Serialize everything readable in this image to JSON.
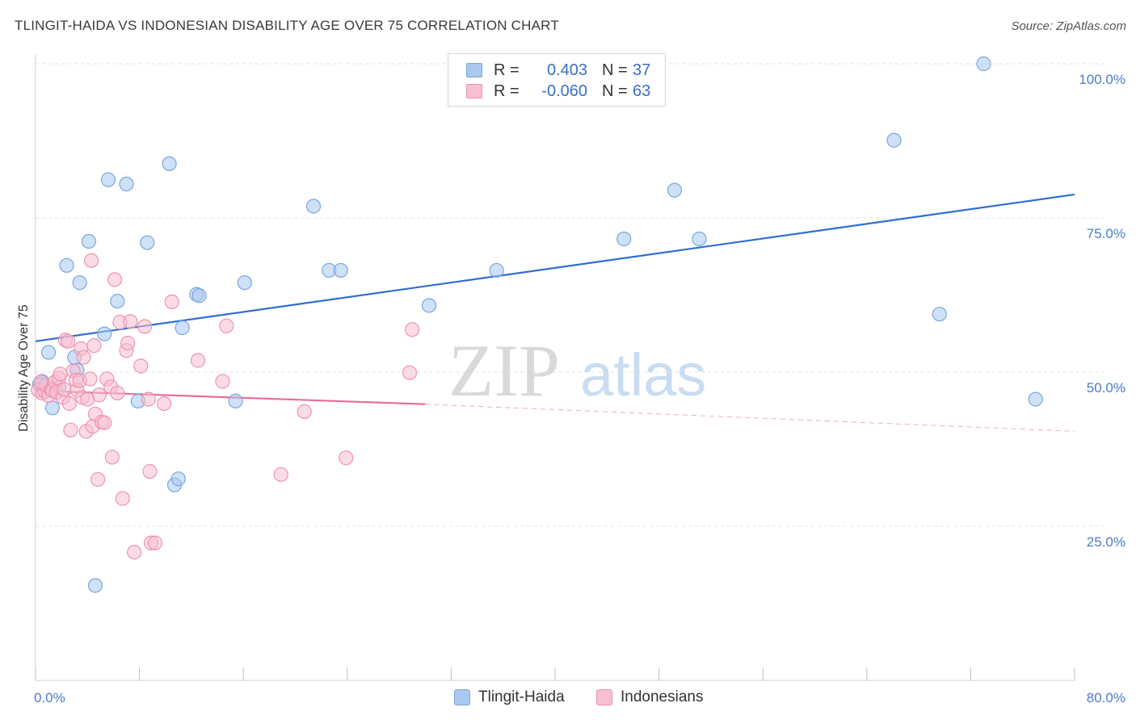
{
  "title": "TLINGIT-HAIDA VS INDONESIAN DISABILITY AGE OVER 75 CORRELATION CHART",
  "source": "Source: ZipAtlas.com",
  "watermark": {
    "zip": "ZIP",
    "atlas": "atlas"
  },
  "legend": {
    "rows": [
      {
        "r_label": "R =",
        "r_value": "0.403",
        "n_label": "N =",
        "n_value": "37",
        "color": "#a8c8ee",
        "border": "#7aa6df"
      },
      {
        "r_label": "R =",
        "r_value": "-0.060",
        "n_label": "N =",
        "n_value": "63",
        "color": "#f7bfd0",
        "border": "#ee93b1"
      }
    ]
  },
  "chart_data": {
    "type": "scatter",
    "title": "TLINGIT-HAIDA VS INDONESIAN DISABILITY AGE OVER 75 CORRELATION CHART",
    "xlabel": "",
    "ylabel": "Disability Age Over 75",
    "xlim": [
      0,
      80
    ],
    "ylim": [
      0,
      100
    ],
    "x_tick_labels": [
      "0.0%",
      "80.0%"
    ],
    "y_ticks": [
      25,
      50,
      75,
      100
    ],
    "y_tick_labels": [
      "25.0%",
      "50.0%",
      "75.0%",
      "100.0%"
    ],
    "grid": "horizontal dashed",
    "legend_position": "top-center",
    "series": [
      {
        "name": "Tlingit-Haida",
        "color": "#7aa6df",
        "fill": "#a8c8ee",
        "trend": {
          "x": [
            0,
            80
          ],
          "y": [
            55.0,
            78.8
          ],
          "color": "#2f6fcf"
        },
        "points": [
          [
            0.5,
            48.5
          ],
          [
            1.0,
            53.2
          ],
          [
            1.3,
            44.2
          ],
          [
            1.8,
            47.5
          ],
          [
            2.4,
            67.3
          ],
          [
            3.0,
            52.4
          ],
          [
            3.2,
            50.3
          ],
          [
            3.4,
            64.5
          ],
          [
            4.1,
            71.2
          ],
          [
            4.6,
            15.4
          ],
          [
            5.3,
            56.2
          ],
          [
            5.6,
            81.2
          ],
          [
            6.3,
            61.5
          ],
          [
            7.0,
            80.5
          ],
          [
            7.9,
            45.3
          ],
          [
            8.6,
            71.0
          ],
          [
            10.3,
            83.8
          ],
          [
            10.7,
            31.7
          ],
          [
            11.0,
            32.7
          ],
          [
            11.3,
            57.2
          ],
          [
            12.4,
            62.6
          ],
          [
            12.6,
            62.4
          ],
          [
            15.4,
            45.3
          ],
          [
            16.1,
            64.5
          ],
          [
            21.4,
            76.9
          ],
          [
            22.6,
            66.5
          ],
          [
            23.5,
            66.5
          ],
          [
            30.3,
            60.8
          ],
          [
            35.5,
            66.5
          ],
          [
            45.3,
            71.6
          ],
          [
            49.2,
            79.5
          ],
          [
            51.1,
            71.6
          ],
          [
            66.1,
            87.6
          ],
          [
            69.6,
            59.4
          ],
          [
            73.0,
            100.0
          ],
          [
            77.0,
            45.6
          ],
          [
            0.3,
            48.0
          ]
        ]
      },
      {
        "name": "Indonesians",
        "color": "#ee93b1",
        "fill": "#f7bfd0",
        "trend": {
          "x": [
            0,
            30
          ],
          "y": [
            47.0,
            44.8
          ],
          "dash_x": [
            30,
            80
          ],
          "dash_y": [
            44.8,
            40.4
          ],
          "color": "#e86d9a"
        },
        "points": [
          [
            0.2,
            47.1
          ],
          [
            0.5,
            46.6
          ],
          [
            0.7,
            46.9
          ],
          [
            0.8,
            47.8
          ],
          [
            1.0,
            46.2
          ],
          [
            1.2,
            47.2
          ],
          [
            1.3,
            47.0
          ],
          [
            1.5,
            48.4
          ],
          [
            1.6,
            46.7
          ],
          [
            1.8,
            49.0
          ],
          [
            1.9,
            49.7
          ],
          [
            2.1,
            45.9
          ],
          [
            2.2,
            47.2
          ],
          [
            2.3,
            55.2
          ],
          [
            2.5,
            55.0
          ],
          [
            2.6,
            44.9
          ],
          [
            2.7,
            40.6
          ],
          [
            2.9,
            50.2
          ],
          [
            3.1,
            48.7
          ],
          [
            3.2,
            47.1
          ],
          [
            3.4,
            48.6
          ],
          [
            3.5,
            53.8
          ],
          [
            3.6,
            45.9
          ],
          [
            3.7,
            52.4
          ],
          [
            3.9,
            40.4
          ],
          [
            4.0,
            45.6
          ],
          [
            4.2,
            48.9
          ],
          [
            4.3,
            68.1
          ],
          [
            4.4,
            41.2
          ],
          [
            4.5,
            54.3
          ],
          [
            4.6,
            43.2
          ],
          [
            4.8,
            32.6
          ],
          [
            4.9,
            46.3
          ],
          [
            5.1,
            41.9
          ],
          [
            5.3,
            41.8
          ],
          [
            5.5,
            48.9
          ],
          [
            5.8,
            47.6
          ],
          [
            5.9,
            36.2
          ],
          [
            6.1,
            65.0
          ],
          [
            6.3,
            46.6
          ],
          [
            6.5,
            58.1
          ],
          [
            6.7,
            29.5
          ],
          [
            7.0,
            53.5
          ],
          [
            7.1,
            54.7
          ],
          [
            7.3,
            58.2
          ],
          [
            7.6,
            20.8
          ],
          [
            8.1,
            51.0
          ],
          [
            8.4,
            57.4
          ],
          [
            8.7,
            45.6
          ],
          [
            8.8,
            33.9
          ],
          [
            8.9,
            22.3
          ],
          [
            9.2,
            22.3
          ],
          [
            9.9,
            44.9
          ],
          [
            10.5,
            61.4
          ],
          [
            12.5,
            51.9
          ],
          [
            14.4,
            48.5
          ],
          [
            14.7,
            57.5
          ],
          [
            18.9,
            33.4
          ],
          [
            20.7,
            43.6
          ],
          [
            23.9,
            36.1
          ],
          [
            28.8,
            49.9
          ],
          [
            29.0,
            56.9
          ],
          [
            0.4,
            48.4
          ]
        ]
      }
    ]
  },
  "bottom_legend": [
    {
      "label": "Tlingit-Haida",
      "color": "#a8c8ee",
      "border": "#7aa6df"
    },
    {
      "label": "Indonesians",
      "color": "#f7bfd0",
      "border": "#ee93b1"
    }
  ]
}
